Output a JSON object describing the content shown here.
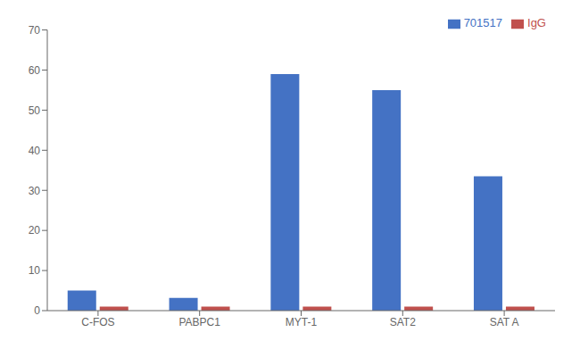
{
  "chart_data": {
    "type": "bar",
    "categories": [
      "C-FOS",
      "PABPC1",
      "MYT-1",
      "SAT2",
      "SAT A"
    ],
    "series": [
      {
        "name": "701517",
        "color": "#4472C4",
        "values": [
          5.0,
          3.2,
          59.0,
          55.0,
          33.5
        ]
      },
      {
        "name": "IgG",
        "color": "#C0504D",
        "values": [
          1.0,
          1.0,
          1.0,
          1.0,
          1.0
        ]
      }
    ],
    "ylim": [
      0,
      70
    ],
    "yticks": [
      0,
      10,
      20,
      30,
      40,
      50,
      60,
      70
    ],
    "grid": false,
    "legend": "upper right"
  }
}
